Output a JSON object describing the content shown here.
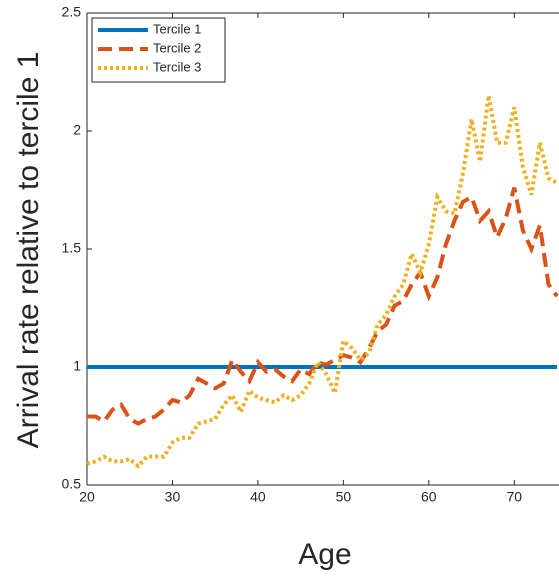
{
  "chart_data": {
    "type": "line",
    "x_label": "Age",
    "y_label": "Arrival rate relative to tercile 1",
    "x": [
      20,
      21,
      22,
      23,
      24,
      25,
      26,
      27,
      28,
      29,
      30,
      31,
      32,
      33,
      34,
      35,
      36,
      37,
      38,
      39,
      40,
      41,
      42,
      43,
      44,
      45,
      46,
      47,
      48,
      49,
      50,
      51,
      52,
      53,
      54,
      55,
      56,
      57,
      58,
      59,
      60,
      61,
      62,
      63,
      64,
      65,
      66,
      67,
      68,
      69,
      70,
      71,
      72,
      73,
      74,
      75
    ],
    "xlim": [
      20,
      75
    ],
    "xticks": [
      20,
      30,
      40,
      50,
      60,
      70
    ],
    "ylim": [
      0.5,
      2.5
    ],
    "yticks": [
      0.5,
      1,
      1.5,
      2,
      2.5
    ],
    "legend": "upper left",
    "series": [
      {
        "name": "Tercile 1",
        "color": "#0072bd",
        "dash": "solid",
        "values": [
          1,
          1,
          1,
          1,
          1,
          1,
          1,
          1,
          1,
          1,
          1,
          1,
          1,
          1,
          1,
          1,
          1,
          1,
          1,
          1,
          1,
          1,
          1,
          1,
          1,
          1,
          1,
          1,
          1,
          1,
          1,
          1,
          1,
          1,
          1,
          1,
          1,
          1,
          1,
          1,
          1,
          1,
          1,
          1,
          1,
          1,
          1,
          1,
          1,
          1,
          1,
          1,
          1,
          1,
          1,
          1
        ]
      },
      {
        "name": "Tercile 2",
        "color": "#d95319",
        "dash": "dashed",
        "values": [
          0.79,
          0.79,
          0.77,
          0.82,
          0.84,
          0.78,
          0.76,
          0.78,
          0.79,
          0.82,
          0.86,
          0.85,
          0.88,
          0.95,
          0.93,
          0.91,
          0.93,
          1.03,
          0.98,
          0.94,
          1.02,
          0.98,
          0.99,
          0.96,
          0.94,
          0.99,
          0.97,
          1.02,
          1.01,
          1.03,
          1.05,
          1.04,
          1.02,
          1.08,
          1.15,
          1.18,
          1.26,
          1.28,
          1.35,
          1.4,
          1.3,
          1.38,
          1.52,
          1.62,
          1.7,
          1.72,
          1.62,
          1.66,
          1.55,
          1.63,
          1.76,
          1.58,
          1.5,
          1.6,
          1.35,
          1.3
        ]
      },
      {
        "name": "Tercile 3",
        "color": "#edb120",
        "dash": "dotted",
        "values": [
          0.59,
          0.6,
          0.62,
          0.6,
          0.6,
          0.61,
          0.58,
          0.62,
          0.62,
          0.62,
          0.68,
          0.7,
          0.7,
          0.76,
          0.77,
          0.78,
          0.84,
          0.88,
          0.81,
          0.9,
          0.87,
          0.86,
          0.85,
          0.88,
          0.86,
          0.88,
          0.93,
          1.02,
          0.97,
          0.89,
          1.11,
          1.08,
          1.03,
          1.06,
          1.18,
          1.22,
          1.3,
          1.35,
          1.48,
          1.4,
          1.52,
          1.72,
          1.66,
          1.65,
          1.82,
          2.05,
          1.87,
          2.15,
          1.95,
          1.95,
          2.1,
          1.85,
          1.73,
          1.95,
          1.8,
          1.78
        ]
      }
    ]
  }
}
